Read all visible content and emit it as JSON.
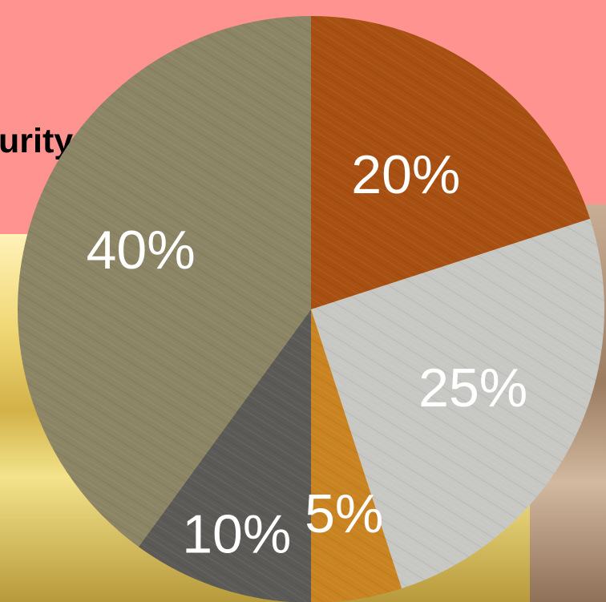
{
  "title_fragment": "urity",
  "chart_data": {
    "type": "pie",
    "title": "",
    "slices": [
      {
        "label": "20%",
        "value": 20,
        "color": "#a84f12"
      },
      {
        "label": "25%",
        "value": 25,
        "color": "#c7c8c4"
      },
      {
        "label": "5%",
        "value": 5,
        "color": "#c98321"
      },
      {
        "label": "10%",
        "value": 10,
        "color": "#5b5a56"
      },
      {
        "label": "40%",
        "value": 40,
        "color": "#8b8465"
      }
    ]
  }
}
